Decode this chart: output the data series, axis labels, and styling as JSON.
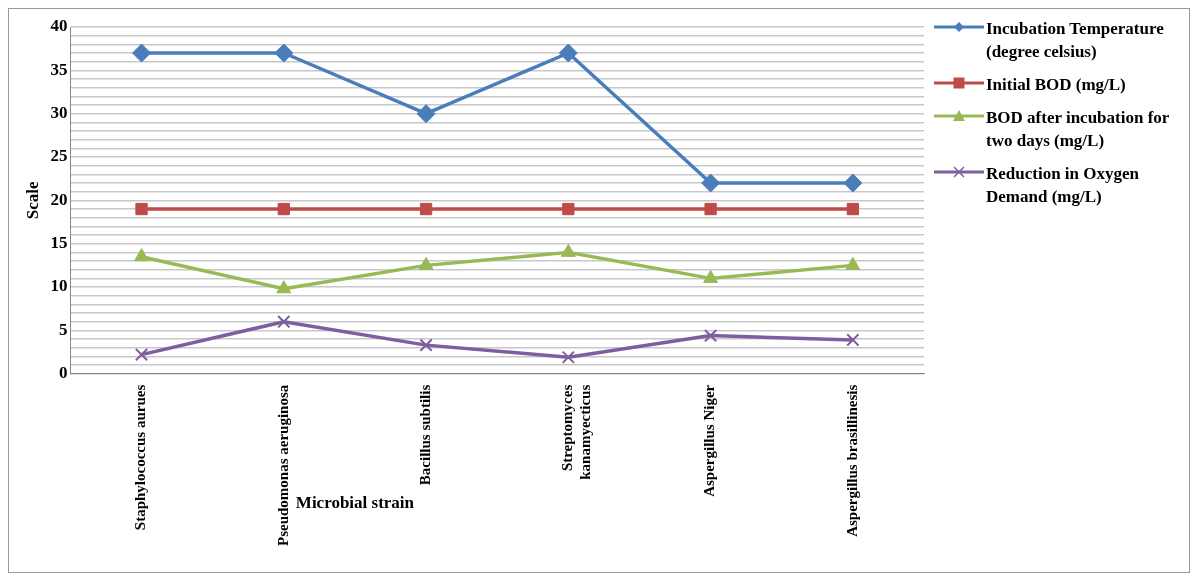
{
  "chart_data": {
    "type": "line",
    "xlabel": "Microbial strain",
    "ylabel": "Scale",
    "categories": [
      "Staphylococcus aurues",
      "Pseudomonas aeruginosa",
      "Bacillus subtilis",
      "Streptomyces kanamyecticus",
      "Aspergillus Niger",
      "Aspergillus brasillinesis"
    ],
    "series": [
      {
        "name": "Incubation Temperature (degree celsius)",
        "color": "#4a7ebb",
        "marker": "diamond",
        "values": [
          37,
          37,
          30,
          37,
          22,
          22
        ]
      },
      {
        "name": "Initial BOD (mg/L)",
        "color": "#be4b48",
        "marker": "square",
        "values": [
          19,
          19,
          19,
          19,
          19,
          19
        ]
      },
      {
        "name": "BOD after incubation for two days (mg/L)",
        "color": "#98b954",
        "marker": "triangle",
        "values": [
          13.5,
          9.8,
          12.5,
          14,
          11,
          12.5
        ]
      },
      {
        "name": "Reduction in Oxygen Demand (mg/L)",
        "color": "#7d5fa0",
        "marker": "cross",
        "values": [
          2.2,
          6,
          3.3,
          1.9,
          4.4,
          3.9
        ]
      }
    ],
    "ylim": [
      0,
      40
    ],
    "yticks": [
      0,
      5,
      10,
      15,
      20,
      25,
      30,
      35,
      40
    ],
    "grid": true,
    "legend": "right"
  }
}
